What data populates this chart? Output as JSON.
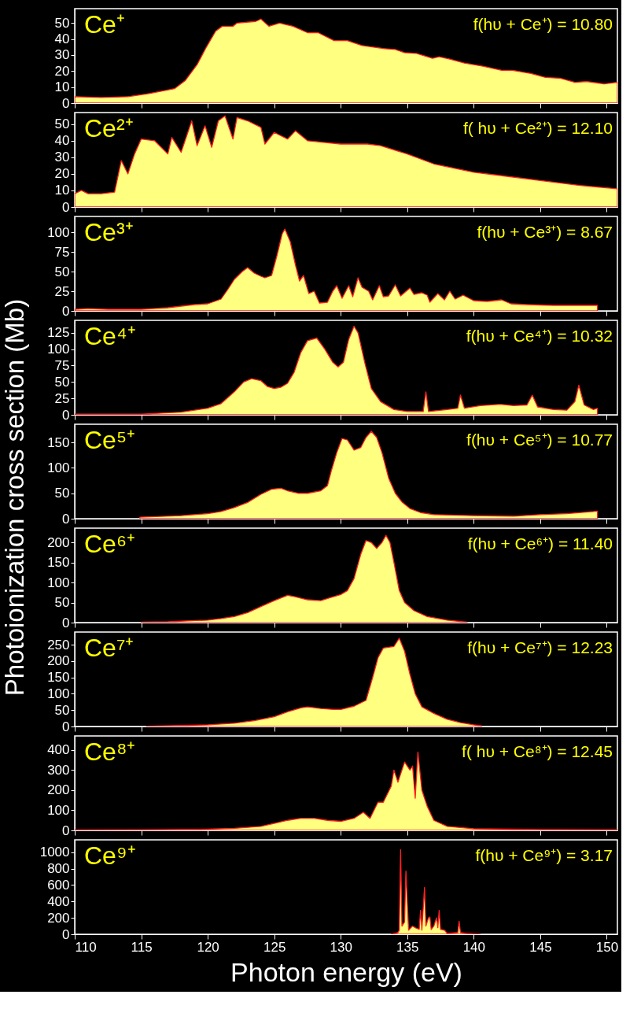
{
  "chart_data": [
    {
      "type": "area",
      "title": "Ce⁺",
      "annotations": [
        "f(hυ + Ce⁺) = 10.80"
      ],
      "tick_labels": "y",
      "xlim": [
        110,
        150.8
      ],
      "xticks": [
        110,
        115,
        120,
        125,
        130,
        135,
        140,
        145,
        150
      ],
      "ylim": [
        0,
        59
      ],
      "yticks": [
        0,
        10,
        20,
        30,
        40,
        50
      ],
      "x": [
        110,
        112,
        114,
        115.6,
        117.5,
        118.3,
        119.2,
        119.9,
        120.6,
        121.1,
        121.9,
        122.2,
        123.6,
        124,
        124.6,
        125.4,
        126.4,
        127.5,
        128.3,
        129.5,
        130.5,
        131.6,
        133.3,
        134.1,
        134.8,
        135.7,
        136.9,
        137.4,
        138.2,
        139.3,
        140.7,
        142.1,
        142.9,
        144.3,
        145.4,
        146.5,
        147.6,
        148.5,
        149.8,
        150.8
      ],
      "series": [
        {
          "color": "#ffff80",
          "values": [
            4,
            3.5,
            4,
            6,
            9,
            14,
            24,
            35,
            45,
            48,
            48,
            50,
            51,
            52.5,
            48,
            50,
            48,
            44,
            44,
            39,
            39,
            36,
            34,
            33.5,
            31.5,
            31,
            28,
            29,
            27.5,
            25,
            23,
            20.5,
            20.5,
            18.5,
            16,
            15.5,
            13,
            13.5,
            12,
            13
          ]
        }
      ]
    },
    {
      "type": "area",
      "title": "Ce²⁺",
      "annotations": [
        "f( hυ + Ce²⁺) = 12.10"
      ],
      "tick_labels": "y",
      "xlim": [
        110,
        150.8
      ],
      "xticks": [
        110,
        115,
        120,
        125,
        130,
        135,
        140,
        145,
        150
      ],
      "ylim": [
        0,
        57
      ],
      "yticks": [
        0,
        10,
        20,
        30,
        40,
        50
      ],
      "x": [
        110,
        110.5,
        111,
        112,
        113,
        113.5,
        114,
        114.5,
        115,
        116,
        117,
        117.3,
        118,
        118.8,
        119.2,
        119.8,
        120.3,
        120.8,
        121.3,
        121.9,
        122.2,
        123,
        124,
        124.3,
        125,
        126,
        126.6,
        127.5,
        130,
        132,
        133,
        135,
        137,
        140,
        142,
        145,
        148,
        150.8
      ],
      "series": [
        {
          "color": "#ffff80",
          "values": [
            8,
            10,
            8,
            8,
            9,
            28,
            20,
            32,
            41,
            40,
            32,
            42,
            33,
            52,
            37,
            49,
            36,
            52,
            55,
            41,
            54,
            52,
            48,
            38,
            45,
            41,
            46,
            40,
            38,
            38,
            37,
            32,
            26,
            21,
            19,
            16,
            13,
            11
          ]
        }
      ]
    },
    {
      "type": "area",
      "title": "Ce³⁺",
      "annotations": [
        "f(hυ + Ce³⁺) = 8.67"
      ],
      "tick_labels": "y",
      "xlim": [
        110,
        150.8
      ],
      "xticks": [
        110,
        115,
        120,
        125,
        130,
        135,
        140,
        145,
        150
      ],
      "ylim": [
        0,
        120
      ],
      "yticks": [
        0,
        25,
        50,
        75,
        100
      ],
      "x": [
        110,
        111,
        112.5,
        115,
        117,
        118,
        119,
        120,
        121,
        121.5,
        122,
        122.6,
        123,
        123.5,
        124,
        124.3,
        124.8,
        125.2,
        125.6,
        125.8,
        126.2,
        126.6,
        126.9,
        127.2,
        127.6,
        128,
        128.4,
        129,
        129.4,
        129.7,
        130.1,
        130.6,
        130.9,
        131.3,
        131.6,
        132.1,
        132.4,
        132.9,
        133.2,
        133.6,
        134.1,
        134.5,
        135.2,
        135.5,
        136.1,
        136.5,
        136.7,
        137.3,
        137.8,
        138.2,
        138.6,
        139.2,
        140,
        141,
        142.1,
        142.8,
        144,
        146,
        148,
        149.3
      ],
      "series": [
        {
          "color": "#ffff80",
          "values": [
            2,
            3,
            2,
            2,
            4,
            6,
            8,
            9,
            15,
            27,
            40,
            50,
            55,
            48,
            44,
            42,
            45,
            70,
            98,
            104,
            88,
            58,
            38,
            45,
            22,
            25,
            10,
            11,
            25,
            32,
            16,
            32,
            18,
            42,
            30,
            25,
            14,
            32,
            18,
            19,
            33,
            19,
            29,
            21,
            23,
            20,
            11,
            22,
            14,
            25,
            15,
            20,
            13,
            12,
            14,
            9,
            8,
            7,
            7,
            7
          ]
        }
      ]
    },
    {
      "type": "area",
      "title": "Ce⁴⁺",
      "annotations": [
        "f(hυ + Ce⁴⁺) = 10.32"
      ],
      "tick_labels": "y",
      "xlim": [
        110,
        150.8
      ],
      "xticks": [
        110,
        115,
        120,
        125,
        130,
        135,
        140,
        145,
        150
      ],
      "ylim": [
        0,
        144
      ],
      "yticks": [
        0,
        25,
        50,
        75,
        100,
        125
      ],
      "x": [
        110,
        115,
        118,
        120,
        121,
        122,
        122.7,
        123.3,
        124,
        124.5,
        125,
        125.5,
        126,
        126.5,
        127,
        127.5,
        128.2,
        128.8,
        129.4,
        129.8,
        130.2,
        130.6,
        131,
        131.3,
        131.8,
        132.3,
        133,
        134,
        135,
        136.2,
        136.4,
        136.6,
        138,
        138.8,
        139,
        139.3,
        140.5,
        142,
        143,
        144,
        144.4,
        144.8,
        146,
        147,
        147.6,
        147.9,
        148.3,
        149,
        149.3
      ],
      "series": [
        {
          "color": "#ffff80",
          "values": [
            1,
            1,
            4,
            10,
            17,
            35,
            50,
            55,
            52,
            43,
            40,
            42,
            48,
            65,
            95,
            113,
            117,
            100,
            80,
            73,
            80,
            115,
            135,
            125,
            80,
            40,
            20,
            8,
            5,
            5,
            35,
            5,
            8,
            10,
            30,
            10,
            14,
            16,
            14,
            15,
            30,
            12,
            8,
            7,
            20,
            45,
            15,
            8,
            10
          ]
        }
      ]
    },
    {
      "type": "area",
      "title": "Ce⁵⁺",
      "annotations": [
        "f(hυ + Ce⁵⁺) = 10.77"
      ],
      "tick_labels": "y",
      "ylabel": "Photoionization cross section (Mb)",
      "xlim": [
        110,
        150.8
      ],
      "xticks": [
        110,
        115,
        120,
        125,
        130,
        135,
        140,
        145,
        150
      ],
      "ylim": [
        0,
        186
      ],
      "yticks": [
        0,
        50,
        100,
        150
      ],
      "x": [
        114.9,
        116,
        118,
        120,
        121,
        122,
        123,
        124,
        124.8,
        125.5,
        126,
        126.8,
        127.5,
        128.5,
        129,
        129.3,
        129.7,
        130.1,
        130.5,
        131,
        131.5,
        131.9,
        132.3,
        132.7,
        133.1,
        133.6,
        134.1,
        134.6,
        135.2,
        136,
        137,
        140,
        143,
        145,
        147,
        149,
        149.3
      ],
      "series": [
        {
          "color": "#ffff80",
          "values": [
            3,
            4,
            6,
            10,
            14,
            22,
            32,
            48,
            58,
            60,
            55,
            50,
            50,
            55,
            65,
            95,
            130,
            158,
            155,
            135,
            140,
            160,
            172,
            160,
            130,
            80,
            50,
            33,
            20,
            12,
            8,
            6,
            5,
            8,
            10,
            14,
            15
          ]
        }
      ]
    },
    {
      "type": "area",
      "title": "Ce⁶⁺",
      "annotations": [
        "f(hυ + Ce⁶⁺) = 11.40"
      ],
      "tick_labels": "y",
      "xlim": [
        110,
        150.8
      ],
      "xticks": [
        110,
        115,
        120,
        125,
        130,
        135,
        140,
        145,
        150
      ],
      "ylim": [
        0,
        236
      ],
      "yticks": [
        0,
        50,
        100,
        150,
        200
      ],
      "x": [
        115,
        117,
        119,
        120,
        121,
        122,
        123,
        124,
        125,
        126,
        126.5,
        127.5,
        128.5,
        129.2,
        130,
        130.5,
        131,
        131.5,
        131.9,
        132.3,
        132.7,
        133.1,
        133.4,
        133.7,
        134,
        134.4,
        134.8,
        135.5,
        136.5,
        138,
        139.5
      ],
      "series": [
        {
          "color": "#ffff80",
          "values": [
            1,
            2,
            5,
            6,
            10,
            15,
            25,
            40,
            55,
            68,
            65,
            57,
            55,
            62,
            70,
            80,
            110,
            170,
            205,
            200,
            185,
            200,
            218,
            200,
            150,
            80,
            50,
            30,
            15,
            6,
            1
          ]
        }
      ]
    },
    {
      "type": "area",
      "title": "Ce⁷⁺",
      "annotations": [
        "f(hυ + Ce⁷⁺) = 12.23"
      ],
      "tick_labels": "y",
      "xlim": [
        110,
        150.8
      ],
      "xticks": [
        110,
        115,
        120,
        125,
        130,
        135,
        140,
        145,
        150
      ],
      "ylim": [
        0,
        289
      ],
      "yticks": [
        0,
        50,
        100,
        150,
        200,
        250
      ],
      "x": [
        115.4,
        118,
        120,
        122,
        123.5,
        125,
        126,
        127,
        127.5,
        128.5,
        129.5,
        130,
        131,
        131.9,
        132.4,
        132.8,
        133.2,
        134,
        134.4,
        134.8,
        135.2,
        135.6,
        136.1,
        137,
        138,
        139,
        140,
        140.6
      ],
      "series": [
        {
          "color": "#ffff80",
          "values": [
            1,
            3,
            5,
            10,
            18,
            30,
            45,
            57,
            60,
            55,
            52,
            52,
            62,
            80,
            150,
            210,
            240,
            245,
            270,
            230,
            160,
            100,
            60,
            40,
            22,
            12,
            5,
            2
          ]
        }
      ]
    },
    {
      "type": "area",
      "title": "Ce⁸⁺",
      "annotations": [
        "f( hυ + Ce⁸⁺) = 12.45"
      ],
      "tick_labels": "y",
      "xlim": [
        110,
        150.8
      ],
      "xticks": [
        110,
        115,
        120,
        125,
        130,
        135,
        140,
        145,
        150
      ],
      "ylim": [
        0,
        470
      ],
      "yticks": [
        0,
        100,
        200,
        300,
        400
      ],
      "x": [
        110,
        115,
        120,
        122,
        124,
        125,
        126,
        127,
        128,
        129,
        130,
        131,
        131.7,
        132.2,
        132.8,
        133.2,
        133.8,
        134,
        134.3,
        134.8,
        135.2,
        135.4,
        135.6,
        135.8,
        136.1,
        136.5,
        137,
        138,
        140,
        145,
        150.8
      ],
      "series": [
        {
          "color": "#ffff80",
          "values": [
            2,
            3,
            6,
            10,
            20,
            35,
            50,
            60,
            60,
            50,
            45,
            60,
            90,
            60,
            140,
            140,
            220,
            300,
            240,
            340,
            300,
            320,
            160,
            390,
            200,
            120,
            50,
            20,
            8,
            4,
            3
          ]
        }
      ]
    },
    {
      "type": "area",
      "title": "Ce⁹⁺",
      "annotations": [
        "f(hυ + Ce⁹⁺) = 3.17"
      ],
      "xlabel": "Photon energy (eV)",
      "xlim": [
        110,
        150.8
      ],
      "xticks": [
        110,
        115,
        120,
        125,
        130,
        135,
        140,
        145,
        150
      ],
      "ylim": [
        0,
        1150
      ],
      "yticks": [
        0,
        200,
        400,
        600,
        800,
        1000
      ],
      "x": [
        133.8,
        134.3,
        134.4,
        134.5,
        134.6,
        134.8,
        134.9,
        135.0,
        135.1,
        135.4,
        135.6,
        135.9,
        136.0,
        136.1,
        136.3,
        136.4,
        136.6,
        136.7,
        136.8,
        137.0,
        137.2,
        137.3,
        137.4,
        137.5,
        137.8,
        138,
        138.8,
        138.9,
        139,
        139.5,
        140.5
      ],
      "series": [
        {
          "color": "#ffff80",
          "values": [
            0,
            20,
            50,
            1030,
            100,
            150,
            770,
            400,
            50,
            100,
            80,
            60,
            290,
            50,
            570,
            100,
            200,
            210,
            60,
            100,
            200,
            80,
            290,
            60,
            50,
            10,
            20,
            160,
            20,
            10,
            0
          ]
        }
      ]
    }
  ]
}
